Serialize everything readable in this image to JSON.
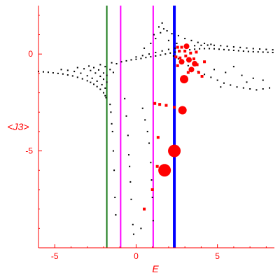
{
  "chart_data": {
    "type": "scatter",
    "title": "",
    "xlabel": "E",
    "ylabel": "<J3>",
    "xlim": [
      -6,
      8.5
    ],
    "ylim": [
      -10,
      2.5
    ],
    "grid": false,
    "legend": "none",
    "x_ticks": [
      {
        "value": -5,
        "label": "-5"
      },
      {
        "value": 0,
        "label": "0"
      },
      {
        "value": 5,
        "label": "5"
      }
    ],
    "y_ticks": [
      {
        "value": 0,
        "label": "0"
      },
      {
        "value": -5,
        "label": "-5"
      }
    ],
    "vertical_lines": [
      {
        "x": -1.8,
        "color": "#1a7a1a"
      },
      {
        "x": -0.95,
        "color": "#ff00ff"
      },
      {
        "x": 1.05,
        "color": "#ff00ff"
      },
      {
        "x": 2.35,
        "color": "#0000ff"
      }
    ],
    "series": [
      {
        "color": "#000000",
        "marker": "dot",
        "points": [
          [
            -6.0,
            -0.9
          ],
          [
            -5.7,
            -0.92
          ],
          [
            -5.4,
            -0.94
          ],
          [
            -5.1,
            -0.97
          ],
          [
            -4.8,
            -1.0
          ],
          [
            -4.5,
            -1.03
          ],
          [
            -4.2,
            -1.08
          ],
          [
            -3.9,
            -1.13
          ],
          [
            -3.6,
            -1.2
          ],
          [
            -3.3,
            -1.28
          ],
          [
            -3.0,
            -1.38
          ],
          [
            -2.8,
            -1.46
          ],
          [
            -2.6,
            -1.56
          ],
          [
            -2.4,
            -1.68
          ],
          [
            -2.2,
            -1.82
          ],
          [
            -2.0,
            -2.0
          ],
          [
            -1.9,
            -2.15
          ],
          [
            -1.85,
            -2.25
          ],
          [
            -4.6,
            -0.8
          ],
          [
            -4.2,
            -0.84
          ],
          [
            -3.8,
            -0.9
          ],
          [
            -3.4,
            -0.99
          ],
          [
            -3.0,
            -1.12
          ],
          [
            -2.7,
            -1.25
          ],
          [
            -2.4,
            -1.4
          ],
          [
            -2.1,
            -1.58
          ],
          [
            -1.9,
            -1.76
          ],
          [
            -3.6,
            -0.7
          ],
          [
            -3.2,
            -0.76
          ],
          [
            -2.8,
            -0.85
          ],
          [
            -2.5,
            -0.98
          ],
          [
            -2.2,
            -1.15
          ],
          [
            -2.0,
            -1.3
          ],
          [
            -1.8,
            -1.45
          ],
          [
            -2.9,
            -0.62
          ],
          [
            -2.6,
            -0.7
          ],
          [
            -2.3,
            -0.82
          ],
          [
            -2.0,
            -0.98
          ],
          [
            -1.8,
            -1.1
          ],
          [
            -2.2,
            -0.55
          ],
          [
            -1.9,
            -0.65
          ],
          [
            -1.6,
            -0.8
          ],
          [
            -1.4,
            -0.95
          ],
          [
            -1.5,
            -0.45
          ],
          [
            -1.2,
            -0.5
          ],
          [
            -0.9,
            -0.4
          ],
          [
            -0.6,
            -0.35
          ],
          [
            -0.3,
            -0.3
          ],
          [
            0.0,
            -0.27
          ],
          [
            0.3,
            -0.23
          ],
          [
            0.6,
            -0.18
          ],
          [
            0.9,
            -0.14
          ],
          [
            1.2,
            -0.1
          ],
          [
            1.5,
            -0.05
          ],
          [
            1.8,
            0.0
          ],
          [
            2.1,
            0.05
          ],
          [
            2.4,
            0.1
          ],
          [
            2.7,
            0.14
          ],
          [
            3.0,
            0.18
          ],
          [
            3.3,
            0.22
          ],
          [
            3.6,
            0.25
          ],
          [
            3.9,
            0.27
          ],
          [
            4.2,
            0.28
          ],
          [
            4.5,
            0.28
          ],
          [
            4.8,
            0.27
          ],
          [
            5.1,
            0.25
          ],
          [
            5.4,
            0.23
          ],
          [
            5.7,
            0.21
          ],
          [
            6.0,
            0.19
          ],
          [
            6.3,
            0.17
          ],
          [
            6.6,
            0.15
          ],
          [
            6.9,
            0.13
          ],
          [
            7.2,
            0.12
          ],
          [
            7.5,
            0.11
          ],
          [
            7.8,
            0.1
          ],
          [
            8.1,
            0.09
          ],
          [
            8.4,
            0.08
          ],
          [
            0.0,
            -0.15
          ],
          [
            0.4,
            -0.08
          ],
          [
            0.8,
            0.0
          ],
          [
            1.2,
            0.08
          ],
          [
            1.6,
            0.16
          ],
          [
            2.0,
            0.24
          ],
          [
            2.4,
            0.3
          ],
          [
            2.8,
            0.36
          ],
          [
            3.2,
            0.4
          ],
          [
            3.6,
            0.43
          ],
          [
            4.0,
            0.45
          ],
          [
            4.4,
            0.46
          ],
          [
            4.8,
            0.45
          ],
          [
            5.2,
            0.43
          ],
          [
            5.6,
            0.4
          ],
          [
            6.0,
            0.37
          ],
          [
            6.4,
            0.34
          ],
          [
            6.8,
            0.31
          ],
          [
            7.2,
            0.28
          ],
          [
            7.6,
            0.26
          ],
          [
            8.0,
            0.24
          ],
          [
            8.4,
            0.22
          ],
          [
            0.5,
            0.3
          ],
          [
            0.9,
            0.55
          ],
          [
            1.2,
            0.8
          ],
          [
            1.5,
            1.1
          ],
          [
            1.7,
            1.3
          ],
          [
            1.1,
            1.0
          ],
          [
            1.4,
            1.4
          ],
          [
            1.6,
            1.6
          ],
          [
            1.9,
            1.2
          ],
          [
            2.2,
            1.05
          ],
          [
            2.6,
            0.95
          ],
          [
            3.0,
            0.8
          ],
          [
            3.4,
            0.7
          ],
          [
            2.0,
            0.7
          ],
          [
            2.5,
            0.55
          ],
          [
            3.8,
            0.6
          ],
          [
            4.2,
            0.55
          ],
          [
            4.6,
            0.5
          ],
          [
            2.3,
            -0.1
          ],
          [
            2.6,
            -0.25
          ],
          [
            2.9,
            -0.4
          ],
          [
            3.2,
            -0.6
          ],
          [
            3.5,
            -0.75
          ],
          [
            3.8,
            -0.9
          ],
          [
            4.2,
            -1.05
          ],
          [
            4.6,
            -1.2
          ],
          [
            5.0,
            -1.35
          ],
          [
            5.4,
            -1.5
          ],
          [
            5.8,
            -1.6
          ],
          [
            6.2,
            -1.7
          ],
          [
            6.6,
            -1.75
          ],
          [
            7.0,
            -1.8
          ],
          [
            7.4,
            -1.85
          ],
          [
            7.8,
            -1.8
          ],
          [
            8.2,
            -1.75
          ],
          [
            4.8,
            -0.8
          ],
          [
            5.5,
            -0.95
          ],
          [
            6.0,
            -0.65
          ],
          [
            6.5,
            -1.1
          ],
          [
            7.2,
            -1.25
          ],
          [
            7.8,
            -1.35
          ],
          [
            5.2,
            -1.7
          ],
          [
            6.8,
            -1.45
          ],
          [
            -1.55,
            -3.0
          ],
          [
            -1.45,
            -4.0
          ],
          [
            -1.4,
            -5.0
          ],
          [
            -1.35,
            -6.0
          ],
          [
            -1.3,
            -7.4
          ],
          [
            -1.25,
            -8.3
          ],
          [
            -1.6,
            -2.6
          ],
          [
            -1.5,
            -3.6
          ],
          [
            -0.7,
            -2.3
          ],
          [
            -0.6,
            -3.2
          ],
          [
            -0.5,
            -4.2
          ],
          [
            -0.45,
            -5.2
          ],
          [
            -0.4,
            -5.8
          ],
          [
            -0.35,
            -6.6
          ],
          [
            -0.3,
            -7.5
          ],
          [
            -0.2,
            -8.8
          ],
          [
            -0.15,
            -9.3
          ],
          [
            0.4,
            -2.8
          ],
          [
            0.55,
            -3.4
          ],
          [
            0.7,
            -4.0
          ],
          [
            0.8,
            -4.6
          ],
          [
            0.9,
            -5.6
          ],
          [
            0.95,
            -6.5
          ],
          [
            1.0,
            -7.4
          ],
          [
            1.05,
            -8.6
          ],
          [
            0.3,
            -9.0
          ]
        ]
      },
      {
        "color": "#ff0000",
        "marker": "circle",
        "points": [
          {
            "x": 2.35,
            "y": -5.0,
            "size": "large"
          },
          {
            "x": 1.75,
            "y": -6.0,
            "size": "large"
          },
          {
            "x": 2.85,
            "y": -2.9,
            "size": "medium"
          },
          {
            "x": 2.95,
            "y": -1.3,
            "size": "medium"
          },
          {
            "x": 3.25,
            "y": -0.3,
            "size": "small"
          },
          {
            "x": 2.8,
            "y": -0.4,
            "size": "small"
          },
          {
            "x": 3.6,
            "y": -0.5,
            "size": "small"
          },
          {
            "x": 3.1,
            "y": 0.4,
            "size": "small"
          },
          {
            "x": 3.4,
            "y": -0.8,
            "size": "small"
          }
        ]
      },
      {
        "color": "#ff0000",
        "marker": "square",
        "points": [
          [
            2.35,
            -2.75
          ],
          [
            1.85,
            -2.65
          ],
          [
            1.45,
            -2.6
          ],
          [
            1.15,
            -2.55
          ],
          [
            1.35,
            -4.3
          ],
          [
            1.3,
            -5.8
          ],
          [
            1.0,
            -7.0
          ],
          [
            0.5,
            -8.0
          ],
          [
            2.55,
            0.35
          ],
          [
            2.8,
            0.35
          ],
          [
            2.65,
            0.15
          ],
          [
            3.0,
            0.15
          ],
          [
            2.45,
            -0.15
          ],
          [
            2.7,
            -0.2
          ],
          [
            3.05,
            -0.1
          ],
          [
            3.35,
            0.05
          ],
          [
            3.55,
            -0.25
          ],
          [
            3.75,
            -0.55
          ],
          [
            3.85,
            -0.95
          ],
          [
            4.05,
            -1.15
          ],
          [
            3.2,
            -0.95
          ],
          [
            2.55,
            -0.6
          ],
          [
            4.2,
            -0.4
          ],
          [
            3.7,
            0.1
          ]
        ]
      }
    ]
  }
}
